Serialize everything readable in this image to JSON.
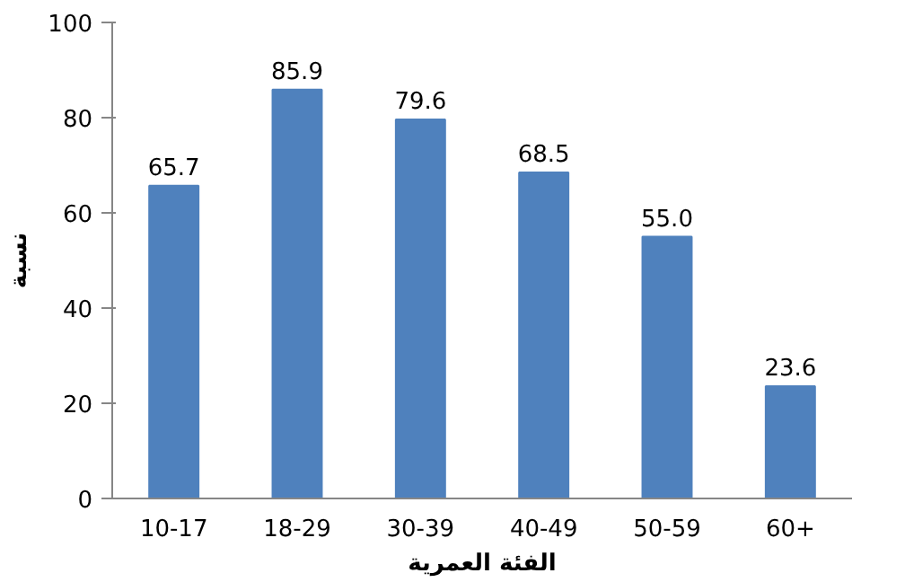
{
  "chart_data": {
    "type": "bar",
    "xlabel": "الفئة العمرية",
    "ylabel": "نسبة",
    "categories": [
      "10-17",
      "18-29",
      "30-39",
      "40-49",
      "50-59",
      "60+"
    ],
    "values": [
      65.7,
      85.9,
      79.6,
      68.5,
      55.0,
      23.6
    ],
    "value_labels": [
      "65.7",
      "85.9",
      "79.6",
      "68.5",
      "55.0",
      "23.6"
    ],
    "color": "#4f81bd",
    "ylim": [
      0,
      100
    ],
    "yticks": [
      0,
      20,
      40,
      60,
      80,
      100
    ],
    "grid": false
  }
}
